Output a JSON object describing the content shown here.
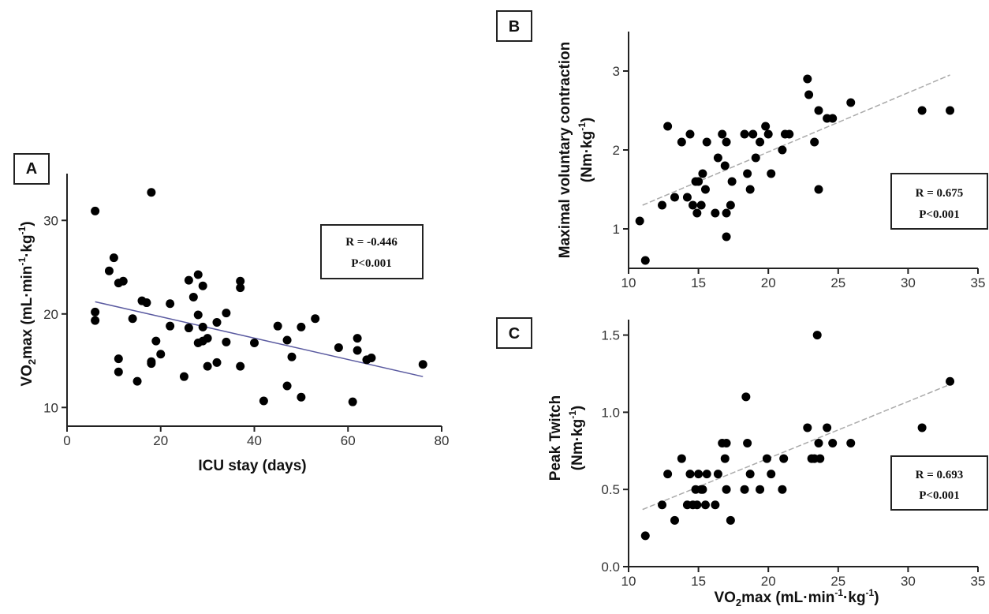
{
  "chart_data": [
    {
      "panel": "A",
      "type": "scatter",
      "xlabel": "ICU stay (days)",
      "ylabel_parts": [
        "VO",
        "2",
        "max (mL·min",
        "-1",
        "·kg",
        "-1",
        ")"
      ],
      "xlim": [
        0,
        80
      ],
      "ylim": [
        8,
        35
      ],
      "xticks": [
        0,
        20,
        40,
        60,
        80
      ],
      "yticks": [
        10,
        20,
        30
      ],
      "annotation": [
        "R = -0.446",
        "P<0.001"
      ],
      "trendline": {
        "x": [
          6,
          76
        ],
        "y": [
          21.3,
          13.3
        ],
        "color": "#5a5aa0"
      },
      "points": [
        [
          6,
          31
        ],
        [
          6,
          20.2
        ],
        [
          6,
          19.3
        ],
        [
          9,
          24.6
        ],
        [
          10,
          26
        ],
        [
          11,
          23.3
        ],
        [
          11,
          15.2
        ],
        [
          11,
          13.8
        ],
        [
          12,
          23.5
        ],
        [
          14,
          19.5
        ],
        [
          15,
          12.8
        ],
        [
          16,
          21.4
        ],
        [
          17,
          21.2
        ],
        [
          18,
          33
        ],
        [
          18,
          14.9
        ],
        [
          18,
          14.7
        ],
        [
          19,
          17.1
        ],
        [
          20,
          15.7
        ],
        [
          22,
          21.1
        ],
        [
          22,
          18.7
        ],
        [
          25,
          13.3
        ],
        [
          26,
          23.6
        ],
        [
          26,
          18.5
        ],
        [
          27,
          21.8
        ],
        [
          28,
          24.2
        ],
        [
          28,
          19.9
        ],
        [
          28,
          16.9
        ],
        [
          29,
          23
        ],
        [
          29,
          18.6
        ],
        [
          29,
          17.1
        ],
        [
          30,
          17.4
        ],
        [
          30,
          14.4
        ],
        [
          32,
          19.1
        ],
        [
          32,
          14.8
        ],
        [
          34,
          20.1
        ],
        [
          34,
          17
        ],
        [
          37,
          23.5
        ],
        [
          37,
          22.8
        ],
        [
          37,
          14.4
        ],
        [
          40,
          16.9
        ],
        [
          42,
          10.7
        ],
        [
          45,
          18.7
        ],
        [
          47,
          17.2
        ],
        [
          47,
          12.3
        ],
        [
          48,
          15.4
        ],
        [
          50,
          18.6
        ],
        [
          50,
          11.1
        ],
        [
          53,
          19.5
        ],
        [
          58,
          16.4
        ],
        [
          61,
          10.6
        ],
        [
          62,
          17.4
        ],
        [
          62,
          16.1
        ],
        [
          64,
          15.1
        ],
        [
          65,
          15.3
        ],
        [
          76,
          14.6
        ]
      ]
    },
    {
      "panel": "B",
      "type": "scatter",
      "xlabel": "",
      "ylabel_lines": [
        "Maximal voluntary contraction",
        "(Nm·kg",
        "-1",
        ")"
      ],
      "xlim": [
        10,
        35
      ],
      "ylim": [
        0.5,
        3.5
      ],
      "xticks": [
        10,
        15,
        20,
        25,
        30,
        35
      ],
      "yticks": [
        1,
        2,
        3
      ],
      "annotation": [
        "R = 0.675",
        "P<0.001"
      ],
      "trendline": {
        "x": [
          11,
          33
        ],
        "y": [
          1.3,
          2.95
        ],
        "color": "#aaaaaa"
      },
      "points": [
        [
          10.8,
          1.1
        ],
        [
          11.2,
          0.6
        ],
        [
          12.4,
          1.3
        ],
        [
          12.8,
          2.3
        ],
        [
          13.3,
          1.4
        ],
        [
          13.8,
          2.1
        ],
        [
          14.2,
          1.4
        ],
        [
          14.4,
          2.2
        ],
        [
          14.6,
          1.3
        ],
        [
          14.8,
          1.6
        ],
        [
          14.9,
          1.2
        ],
        [
          15.0,
          1.6
        ],
        [
          15.2,
          1.3
        ],
        [
          15.3,
          1.7
        ],
        [
          15.5,
          1.5
        ],
        [
          15.6,
          2.1
        ],
        [
          16.2,
          1.2
        ],
        [
          16.4,
          1.9
        ],
        [
          16.7,
          2.2
        ],
        [
          16.9,
          1.8
        ],
        [
          17.0,
          2.1
        ],
        [
          17.0,
          1.2
        ],
        [
          17.0,
          0.9
        ],
        [
          17.3,
          1.3
        ],
        [
          17.4,
          1.6
        ],
        [
          18.3,
          2.2
        ],
        [
          18.5,
          1.7
        ],
        [
          18.7,
          1.5
        ],
        [
          18.9,
          2.2
        ],
        [
          19.1,
          1.9
        ],
        [
          19.4,
          2.1
        ],
        [
          19.8,
          2.3
        ],
        [
          20.0,
          2.2
        ],
        [
          20.2,
          1.7
        ],
        [
          21.0,
          2.0
        ],
        [
          21.2,
          2.2
        ],
        [
          21.5,
          2.2
        ],
        [
          22.8,
          2.9
        ],
        [
          22.9,
          2.7
        ],
        [
          23.3,
          2.1
        ],
        [
          23.6,
          2.5
        ],
        [
          23.6,
          1.5
        ],
        [
          24.2,
          2.4
        ],
        [
          24.6,
          2.4
        ],
        [
          25.9,
          2.6
        ],
        [
          31.0,
          2.5
        ],
        [
          33.0,
          2.5
        ]
      ]
    },
    {
      "panel": "C",
      "type": "scatter",
      "xlabel_parts": [
        "VO",
        "2",
        "max (mL·min",
        "-1",
        "·kg",
        "-1",
        ")"
      ],
      "ylabel_lines": [
        "Peak Twitch",
        "(Nm·kg",
        "-1",
        ")"
      ],
      "xlim": [
        10,
        35
      ],
      "ylim": [
        0.0,
        1.6
      ],
      "xticks": [
        10,
        15,
        20,
        25,
        30,
        35
      ],
      "yticks": [
        "0.0",
        "0.5",
        "1.0",
        "1.5"
      ],
      "annotation": [
        "R = 0.693",
        "P<0.001"
      ],
      "trendline": {
        "x": [
          11,
          33
        ],
        "y": [
          0.37,
          1.18
        ],
        "color": "#aaaaaa"
      },
      "points": [
        [
          11.2,
          0.2
        ],
        [
          12.4,
          0.4
        ],
        [
          12.8,
          0.6
        ],
        [
          13.3,
          0.3
        ],
        [
          13.8,
          0.7
        ],
        [
          14.2,
          0.4
        ],
        [
          14.4,
          0.6
        ],
        [
          14.6,
          0.4
        ],
        [
          14.8,
          0.5
        ],
        [
          14.9,
          0.4
        ],
        [
          15.0,
          0.6
        ],
        [
          15.2,
          0.5
        ],
        [
          15.3,
          0.5
        ],
        [
          15.5,
          0.4
        ],
        [
          15.6,
          0.6
        ],
        [
          16.2,
          0.4
        ],
        [
          16.4,
          0.6
        ],
        [
          16.7,
          0.8
        ],
        [
          16.9,
          0.7
        ],
        [
          17.0,
          0.8
        ],
        [
          17.0,
          0.5
        ],
        [
          17.3,
          0.3
        ],
        [
          18.3,
          0.5
        ],
        [
          18.4,
          1.1
        ],
        [
          18.5,
          0.8
        ],
        [
          18.7,
          0.6
        ],
        [
          19.4,
          0.5
        ],
        [
          19.9,
          0.7
        ],
        [
          20.2,
          0.6
        ],
        [
          21.0,
          0.5
        ],
        [
          21.1,
          0.7
        ],
        [
          22.8,
          0.9
        ],
        [
          23.1,
          0.7
        ],
        [
          23.3,
          0.7
        ],
        [
          23.5,
          1.5
        ],
        [
          23.6,
          0.8
        ],
        [
          23.7,
          0.7
        ],
        [
          24.2,
          0.9
        ],
        [
          24.6,
          0.8
        ],
        [
          25.9,
          0.8
        ],
        [
          31.0,
          0.9
        ],
        [
          33.0,
          1.2
        ]
      ]
    }
  ]
}
